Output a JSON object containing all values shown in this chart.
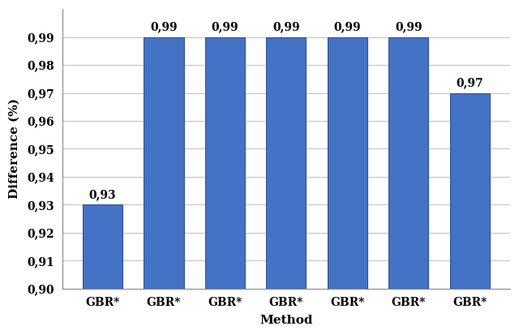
{
  "categories": [
    "GBR*",
    "GBR*",
    "GBR*",
    "GBR*",
    "GBR*",
    "GBR*",
    "GBR*"
  ],
  "values": [
    0.93,
    0.99,
    0.99,
    0.99,
    0.99,
    0.99,
    0.97
  ],
  "bar_color": "#4472C4",
  "bar_edge_color": "#2F5597",
  "xlabel": "Method",
  "ylabel": "Difference (%)",
  "ylim_min": 0.9,
  "ylim_max": 1.0,
  "yticks": [
    0.9,
    0.91,
    0.92,
    0.93,
    0.94,
    0.95,
    0.96,
    0.97,
    0.98,
    0.99
  ],
  "label_fontsize": 11,
  "tick_fontsize": 10,
  "bar_label_fontsize": 10,
  "background_color": "#FFFFFF",
  "grid_color": "#C0C0C0"
}
